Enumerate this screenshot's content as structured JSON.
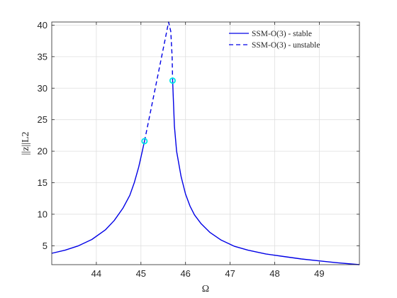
{
  "chart_data": {
    "type": "line",
    "title": "",
    "xlabel": "Ω",
    "ylabel": "||z||L2",
    "xlim": [
      43.0,
      49.9
    ],
    "ylim": [
      2.0,
      40.5
    ],
    "xticks": [
      44,
      45,
      46,
      47,
      48,
      49
    ],
    "yticks": [
      5,
      10,
      15,
      20,
      25,
      30,
      35,
      40
    ],
    "grid": true,
    "legend_position": "top-right",
    "series": [
      {
        "name": "SSM-O(3) - stable",
        "style": "solid",
        "color": "#0000e6",
        "x": [
          43.0,
          43.3,
          43.6,
          43.9,
          44.2,
          44.4,
          44.6,
          44.75,
          44.85,
          44.95,
          45.03,
          45.08
        ],
        "y": [
          3.8,
          4.3,
          5.0,
          6.0,
          7.5,
          9.0,
          11.0,
          13.0,
          15.0,
          17.5,
          20.0,
          21.6
        ]
      },
      {
        "name": "SSM-O(3) - unstable",
        "style": "dashed",
        "color": "#0000e6",
        "x": [
          45.08,
          45.15,
          45.25,
          45.35,
          45.45,
          45.55,
          45.62,
          45.67,
          45.7,
          45.71
        ],
        "y": [
          21.6,
          24.0,
          27.5,
          31.0,
          34.5,
          38.0,
          40.5,
          39.0,
          35.0,
          31.2
        ]
      },
      {
        "name": "",
        "style": "solid",
        "color": "#0000e6",
        "x": [
          45.71,
          45.75,
          45.8,
          45.9,
          46.0,
          46.1,
          46.2,
          46.35,
          46.55,
          46.8,
          47.1,
          47.4,
          47.8,
          48.2,
          48.6,
          49.0,
          49.4,
          49.9
        ],
        "y": [
          31.2,
          24.0,
          20.0,
          16.0,
          13.2,
          11.3,
          9.9,
          8.5,
          7.1,
          5.9,
          4.9,
          4.3,
          3.7,
          3.3,
          2.9,
          2.6,
          2.3,
          2.0
        ]
      }
    ],
    "markers": [
      {
        "x": 45.08,
        "y": 21.6,
        "color": "#00e6e6"
      },
      {
        "x": 45.71,
        "y": 31.2,
        "color": "#00e6e6"
      }
    ],
    "legend": [
      {
        "label": "SSM-O(3) - stable",
        "style": "solid"
      },
      {
        "label": "SSM-O(3) - unstable",
        "style": "dashed"
      }
    ]
  }
}
